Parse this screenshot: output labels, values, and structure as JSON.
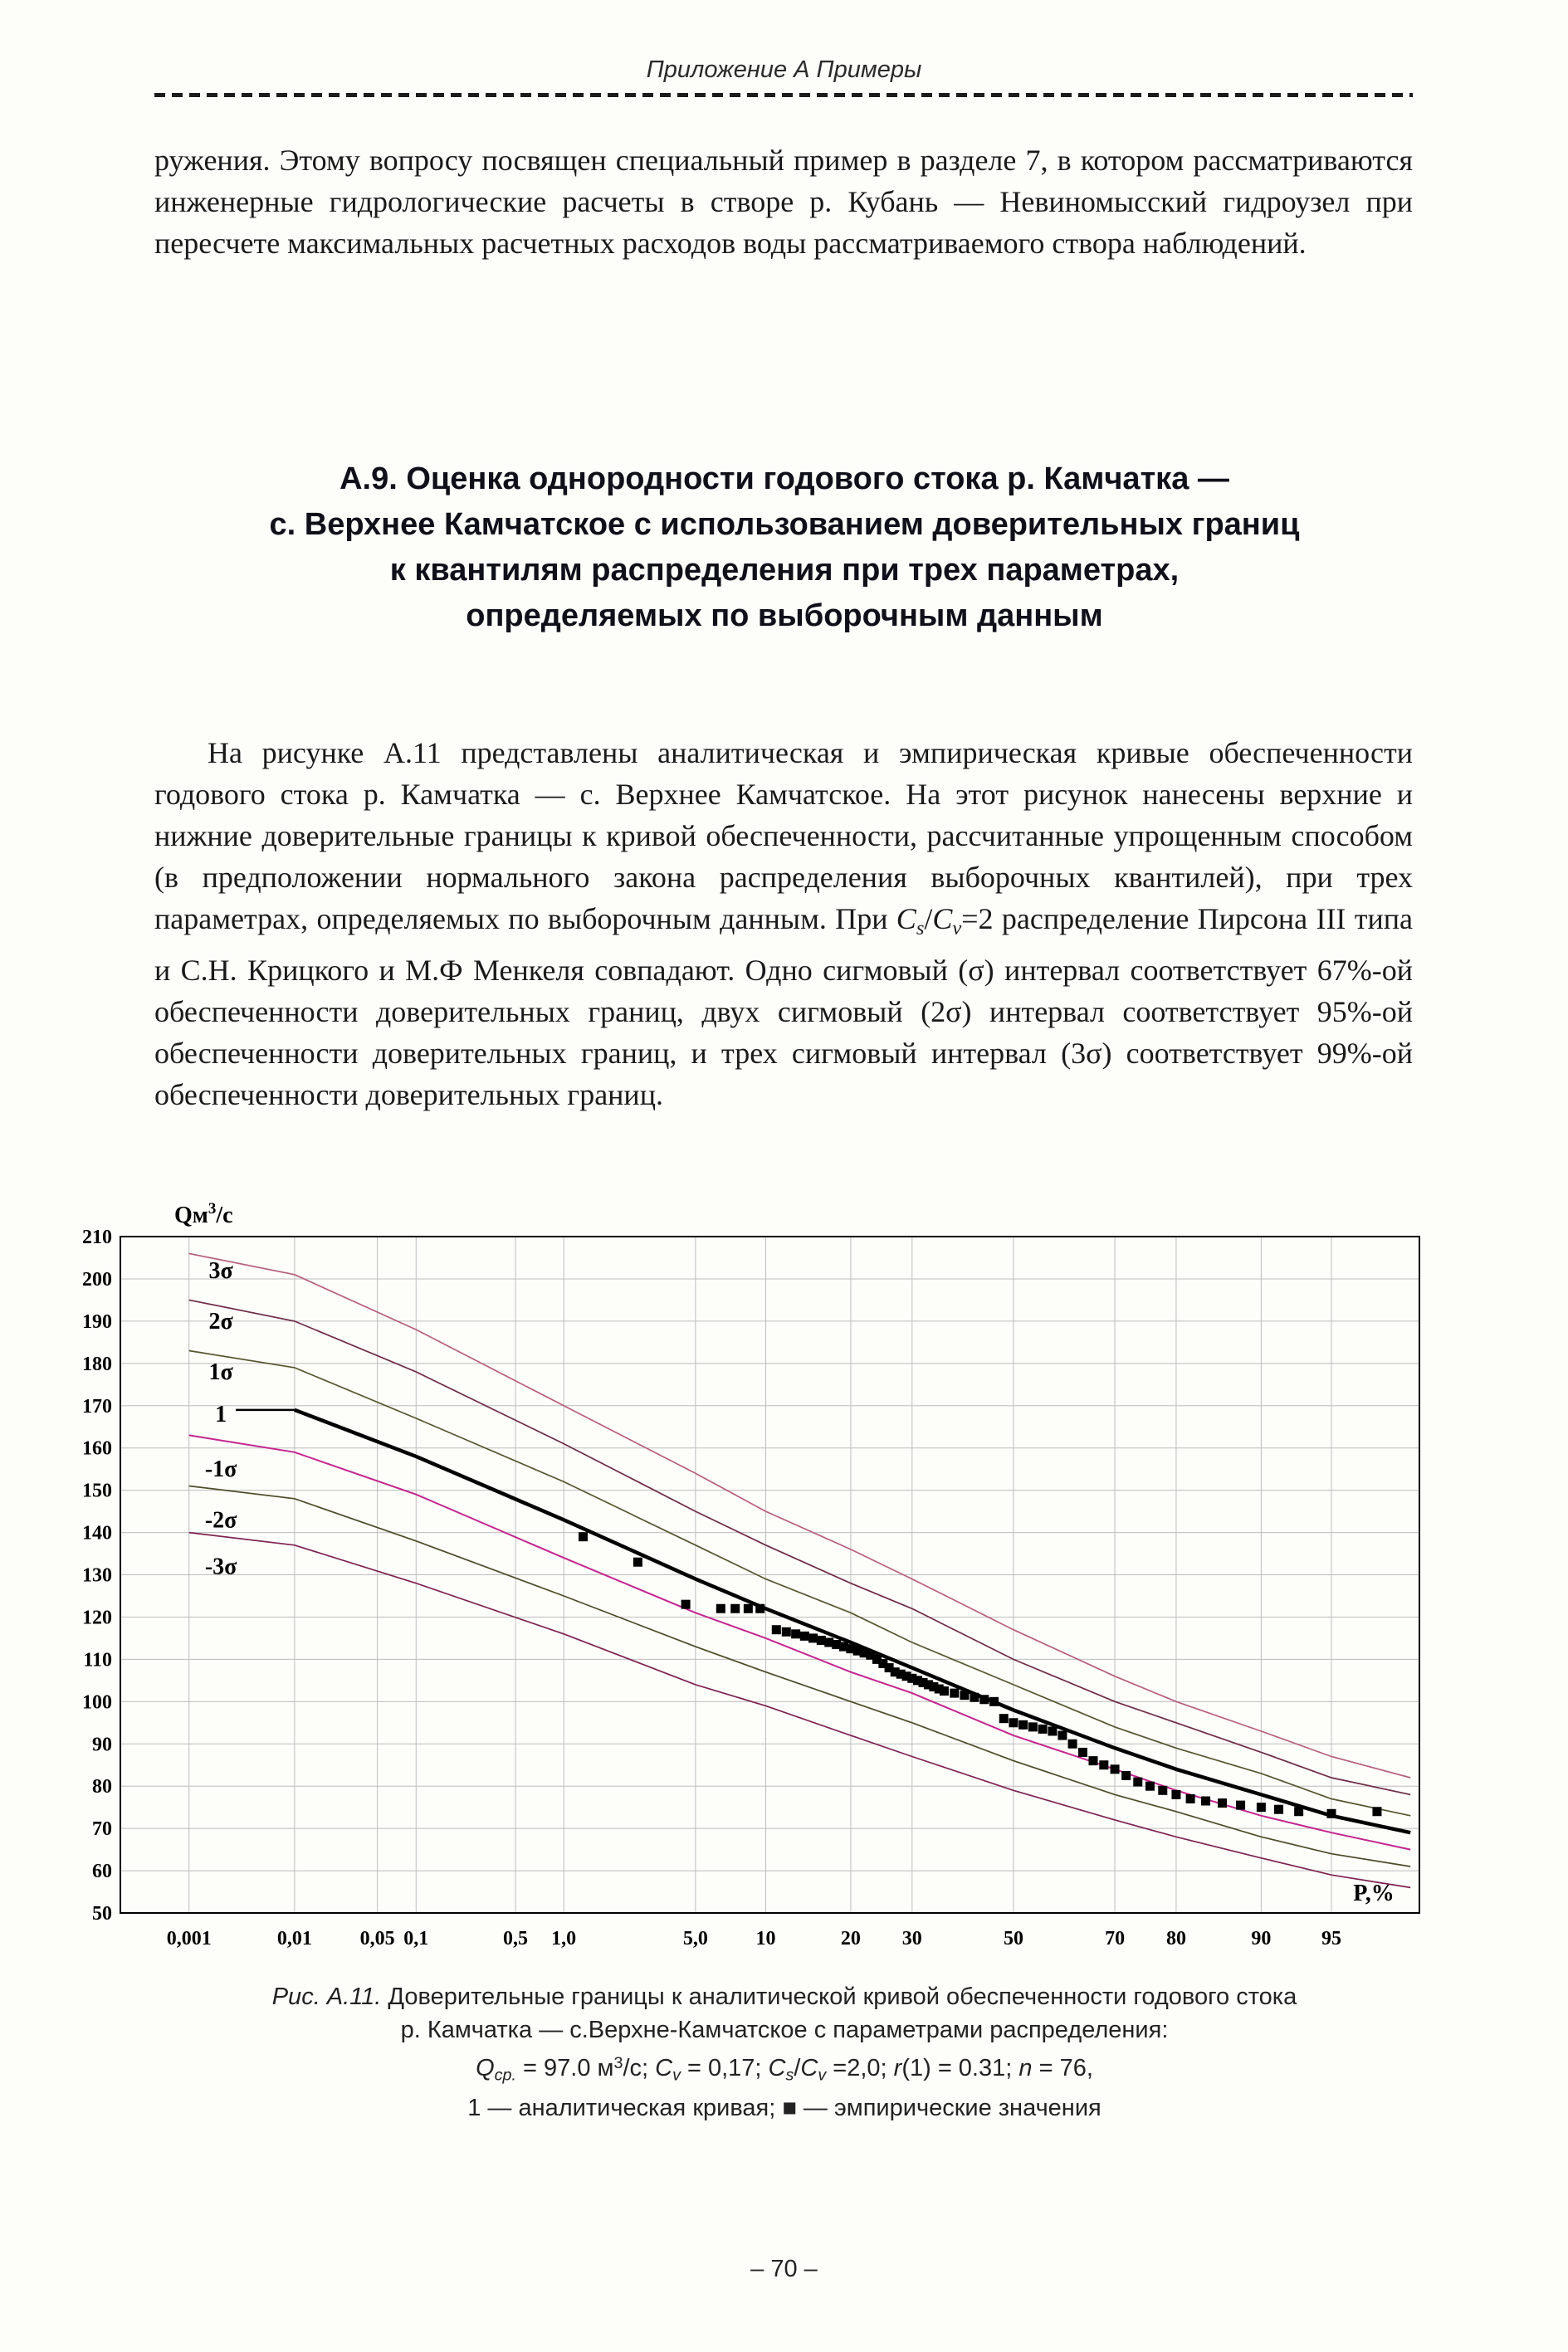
{
  "page": {
    "header": "Приложение А  Примеры",
    "page_number": "– 70 –"
  },
  "body": {
    "p1": "ружения. Этому вопросу посвящен специальный пример в разделе 7, в котором рассматриваются инженерные гидрологические расчеты в створе р. Кубань — Невиномысский гидроузел при пересчете максимальных расчетных расходов воды рассматриваемого створа наблюдений.",
    "heading": {
      "line1": "А.9. Оценка однородности годового стока р. Камчатка —",
      "line2": "с. Верхнее Камчатское с использованием доверительных границ",
      "line3": "к квантилям распределения при трех параметрах,",
      "line4": "определяемых по выборочным данным"
    },
    "p2": {
      "pre": "На рисунке А.11 представлены аналитическая и эмпирическая кривые обеспеченности годового стока р. Камчатка — с. Верхнее Камчатское. На этот рисунок нанесены верхние и нижние доверительные границы к кривой обеспеченности, рассчитанные упрощенным способом (в предположении нормального закона распределения выборочных квантилей), при трех параметрах, определяемых по выборочным данным. При ",
      "c1": "C",
      "c1s": "s",
      "slash": "/",
      "c2": "C",
      "c2s": "v",
      "post": "=2 распределение Пирсона III типа и С.Н. Крицкого и М.Ф Менкеля совпадают. Одно сигмовый (σ) интервал соответствует 67%-ой обеспеченности доверительных границ, двух сигмовый (2σ) интервал соответствует 95%-ой обеспеченности доверительных границ, и трех сигмовый интервал (3σ) соответствует 99%-ой обеспеченности доверительных границ."
    }
  },
  "figure": {
    "fig_label": "Рис. А.11.",
    "line1": " Доверительные границы к аналитической кривой обеспеченности годового стока",
    "line2": "р. Камчатка — с.Верхне-Камчатское с параметрами распределения:",
    "line3": {
      "t1": "Q",
      "t2": "ср.",
      "t3": " = 97.0 м",
      "t4": "3",
      "t5": "/с; ",
      "t6": "C",
      "t7": "v",
      "t8": " = 0,17; ",
      "t9": "C",
      "t10": "s",
      "t11": "/",
      "t12": "C",
      "t13": "v",
      "t14": " =2,0; ",
      "t15": "r",
      "t16": "(1) = 0.31; ",
      "t17": "n",
      "t18": " = 76,"
    },
    "line4": "1 — аналитическая кривая; ■ — эмпирические значения"
  },
  "chart_data": {
    "type": "line",
    "x_axis_scale": "normal-probability",
    "xlabel": "P,%",
    "ylabel": {
      "main": "Qм",
      "sup": "3",
      "unit": "/с"
    },
    "ylim": [
      50,
      210
    ],
    "y_tick_step": 10,
    "z_range": [
      -4.62,
      2.1
    ],
    "label_z": -4.1,
    "grid": true,
    "colors": {
      "grid": "#bdbdbd",
      "frame": "#000000",
      "points": "#000000"
    },
    "x_ticks": [
      {
        "label": "0,001",
        "P": 0.001
      },
      {
        "label": "0,01",
        "P": 0.01
      },
      {
        "label": "0,05",
        "P": 0.05
      },
      {
        "label": "0,1",
        "P": 0.1
      },
      {
        "label": "0,5",
        "P": 0.5
      },
      {
        "label": "1,0",
        "P": 1.0
      },
      {
        "label": "5,0",
        "P": 5.0
      },
      {
        "label": "10",
        "P": 10
      },
      {
        "label": "20",
        "P": 20
      },
      {
        "label": "30",
        "P": 30
      },
      {
        "label": "50",
        "P": 50
      },
      {
        "label": "70",
        "P": 70
      },
      {
        "label": "80",
        "P": 80
      },
      {
        "label": "90",
        "P": 90
      },
      {
        "label": "95",
        "P": 95
      }
    ],
    "x_P": [
      0.001,
      0.01,
      0.1,
      1,
      5,
      10,
      20,
      30,
      50,
      70,
      80,
      90,
      95,
      98
    ],
    "series": [
      {
        "name": "3σ",
        "color": "#b65f7d",
        "width": 1.7,
        "values": [
          206,
          201,
          188,
          170,
          154,
          145,
          136,
          129,
          117,
          106,
          100,
          93,
          87,
          82
        ]
      },
      {
        "name": "2σ",
        "color": "#6d2b45",
        "width": 1.7,
        "values": [
          195,
          190,
          178,
          161,
          145,
          137,
          128,
          122,
          110,
          100,
          95,
          88,
          82,
          78
        ]
      },
      {
        "name": "1σ",
        "color": "#56562f",
        "width": 1.7,
        "values": [
          183,
          179,
          167,
          152,
          137,
          129,
          121,
          114,
          104,
          94,
          89,
          83,
          77,
          73
        ]
      },
      {
        "name": "1",
        "color": "#000000",
        "width": 4.5,
        "values": [
          null,
          169,
          158,
          143,
          129,
          122,
          114,
          108,
          98,
          89,
          84,
          78,
          73,
          69
        ]
      },
      {
        "name": "-1σ",
        "color": "#c4258f",
        "width": 2.0,
        "values": [
          163,
          159,
          149,
          134,
          121,
          115,
          107,
          102,
          92,
          84,
          79,
          73,
          69,
          65
        ]
      },
      {
        "name": "-2σ",
        "color": "#4c4c28",
        "width": 1.7,
        "values": [
          151,
          148,
          138,
          125,
          113,
          107,
          100,
          95,
          86,
          78,
          74,
          68,
          64,
          61
        ]
      },
      {
        "name": "-3σ",
        "color": "#7d2250",
        "width": 1.7,
        "values": [
          140,
          137,
          128,
          116,
          104,
          99,
          92,
          87,
          79,
          72,
          68,
          63,
          59,
          56
        ]
      }
    ],
    "curve_labels": [
      {
        "text": "3σ",
        "Q": 202
      },
      {
        "text": "2σ",
        "Q": 190
      },
      {
        "text": "1σ",
        "Q": 178
      },
      {
        "text": "1",
        "Q": 168,
        "dash_to_curve": true
      },
      {
        "text": "-1σ",
        "Q": 155
      },
      {
        "text": "-2σ",
        "Q": 143
      },
      {
        "text": "-3σ",
        "Q": 132
      }
    ],
    "empirical_points": [
      [
        1.3,
        139
      ],
      [
        2.6,
        133
      ],
      [
        4.5,
        123
      ],
      [
        6.5,
        122
      ],
      [
        7.5,
        122
      ],
      [
        8.5,
        122
      ],
      [
        9.5,
        122
      ],
      [
        11,
        117
      ],
      [
        12,
        116.5
      ],
      [
        13,
        116
      ],
      [
        14,
        115.5
      ],
      [
        15,
        115
      ],
      [
        16,
        114.5
      ],
      [
        17,
        114
      ],
      [
        18,
        113.5
      ],
      [
        19,
        113
      ],
      [
        20,
        112.5
      ],
      [
        21,
        112
      ],
      [
        22,
        111.5
      ],
      [
        23,
        111
      ],
      [
        24,
        110
      ],
      [
        25,
        109
      ],
      [
        26,
        108
      ],
      [
        27,
        107
      ],
      [
        28,
        106.5
      ],
      [
        29,
        106
      ],
      [
        30,
        105.5
      ],
      [
        31,
        105
      ],
      [
        32,
        104.5
      ],
      [
        33,
        104
      ],
      [
        34,
        103.5
      ],
      [
        35,
        103
      ],
      [
        36,
        102.5
      ],
      [
        38,
        102
      ],
      [
        40,
        101.5
      ],
      [
        42,
        101
      ],
      [
        44,
        100.5
      ],
      [
        46,
        100
      ],
      [
        48,
        96
      ],
      [
        50,
        95
      ],
      [
        52,
        94.5
      ],
      [
        54,
        94
      ],
      [
        56,
        93.5
      ],
      [
        58,
        93
      ],
      [
        60,
        92
      ],
      [
        62,
        90
      ],
      [
        64,
        88
      ],
      [
        66,
        86
      ],
      [
        68,
        85
      ],
      [
        70,
        84
      ],
      [
        72,
        82.5
      ],
      [
        74,
        81
      ],
      [
        76,
        80
      ],
      [
        78,
        79
      ],
      [
        80,
        78
      ],
      [
        82,
        77
      ],
      [
        84,
        76.5
      ],
      [
        86,
        76
      ],
      [
        88,
        75.5
      ],
      [
        90,
        75
      ],
      [
        91.5,
        74.5
      ],
      [
        93,
        74
      ],
      [
        95,
        73.5
      ],
      [
        97,
        74
      ]
    ]
  }
}
